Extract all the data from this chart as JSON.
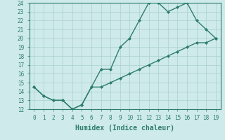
{
  "title": "",
  "xlabel": "Humidex (Indice chaleur)",
  "ylabel": "",
  "line1_x": [
    0,
    1,
    2,
    3,
    4,
    5,
    6,
    7,
    8,
    9,
    10,
    11,
    12,
    13,
    14,
    15,
    16,
    17,
    18,
    19
  ],
  "line1_y": [
    14.5,
    13.5,
    13.0,
    13.0,
    12.0,
    12.5,
    14.5,
    16.5,
    16.5,
    19.0,
    20.0,
    22.0,
    24.0,
    24.0,
    23.0,
    23.5,
    24.0,
    22.0,
    21.0,
    20.0
  ],
  "line2_x": [
    0,
    1,
    2,
    3,
    4,
    5,
    6,
    7,
    8,
    9,
    10,
    11,
    12,
    13,
    14,
    15,
    16,
    17,
    18,
    19
  ],
  "line2_y": [
    14.5,
    13.5,
    13.0,
    13.0,
    12.0,
    12.5,
    14.5,
    14.5,
    15.0,
    15.5,
    16.0,
    16.5,
    17.0,
    17.5,
    18.0,
    18.5,
    19.0,
    19.5,
    19.5,
    20.0
  ],
  "line_color": "#2e7d6e",
  "bg_color": "#ceeaea",
  "grid_color": "#aacfcf",
  "text_color": "#2e7d6e",
  "xlim": [
    -0.5,
    19.5
  ],
  "ylim": [
    12,
    24
  ],
  "xticks": [
    0,
    1,
    2,
    3,
    4,
    5,
    6,
    7,
    8,
    9,
    10,
    11,
    12,
    13,
    14,
    15,
    16,
    17,
    18,
    19
  ],
  "yticks": [
    12,
    13,
    14,
    15,
    16,
    17,
    18,
    19,
    20,
    21,
    22,
    23,
    24
  ],
  "marker": "D",
  "markersize": 2.0,
  "linewidth": 1.0,
  "tick_labelsize": 5.5,
  "xlabel_fontsize": 7
}
